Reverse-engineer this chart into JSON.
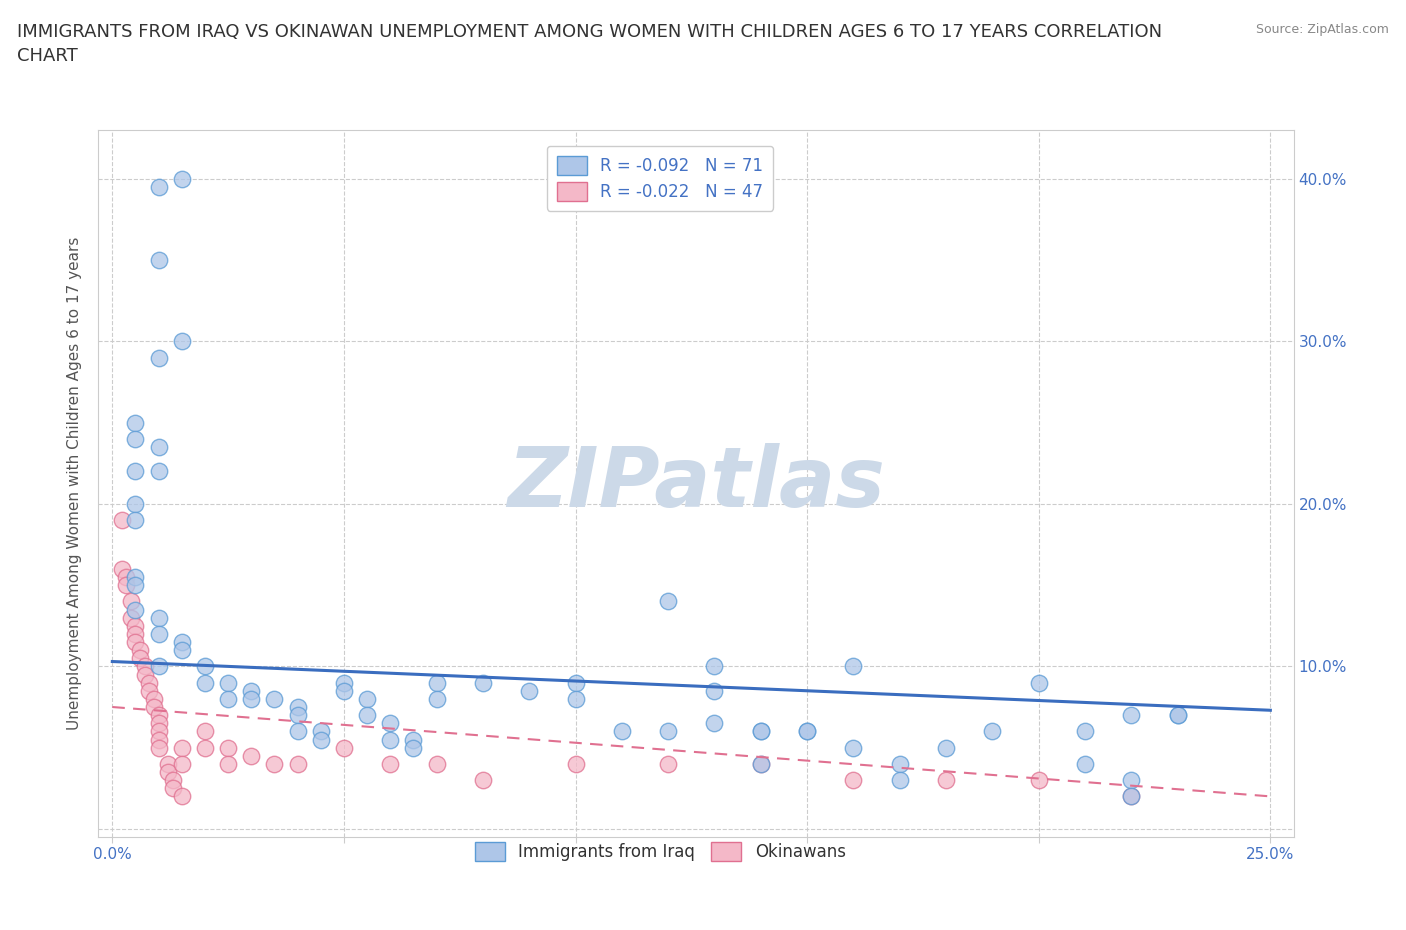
{
  "title": "IMMIGRANTS FROM IRAQ VS OKINAWAN UNEMPLOYMENT AMONG WOMEN WITH CHILDREN AGES 6 TO 17 YEARS CORRELATION\nCHART",
  "source": "Source: ZipAtlas.com",
  "ylabel": "Unemployment Among Women with Children Ages 6 to 17 years",
  "x_ticks": [
    0.0,
    0.05,
    0.1,
    0.15,
    0.2,
    0.25
  ],
  "y_ticks": [
    0.0,
    0.1,
    0.2,
    0.3,
    0.4
  ],
  "xlim": [
    -0.003,
    0.255
  ],
  "ylim": [
    -0.005,
    0.43
  ],
  "blue_scatter_color": "#aec6e8",
  "blue_edge_color": "#5b9bd5",
  "pink_scatter_color": "#f4b8c8",
  "pink_edge_color": "#e07090",
  "blue_line_color": "#3a6dbf",
  "pink_line_color": "#e07090",
  "legend_blue_R": "R = -0.092",
  "legend_blue_N": "N = 71",
  "legend_pink_R": "R = -0.022",
  "legend_pink_N": "N = 47",
  "watermark": "ZIPatlas",
  "blue_scatter_x": [
    0.015,
    0.01,
    0.01,
    0.015,
    0.01,
    0.005,
    0.005,
    0.01,
    0.01,
    0.005,
    0.005,
    0.005,
    0.005,
    0.005,
    0.005,
    0.01,
    0.01,
    0.015,
    0.015,
    0.01,
    0.02,
    0.02,
    0.025,
    0.025,
    0.03,
    0.03,
    0.035,
    0.04,
    0.04,
    0.04,
    0.045,
    0.045,
    0.05,
    0.05,
    0.055,
    0.055,
    0.06,
    0.06,
    0.065,
    0.065,
    0.07,
    0.07,
    0.08,
    0.09,
    0.1,
    0.1,
    0.11,
    0.12,
    0.13,
    0.13,
    0.14,
    0.14,
    0.15,
    0.16,
    0.17,
    0.18,
    0.19,
    0.2,
    0.21,
    0.21,
    0.22,
    0.22,
    0.23,
    0.12,
    0.13,
    0.14,
    0.15,
    0.16,
    0.17,
    0.22,
    0.23
  ],
  "blue_scatter_y": [
    0.4,
    0.395,
    0.35,
    0.3,
    0.29,
    0.25,
    0.24,
    0.235,
    0.22,
    0.22,
    0.2,
    0.19,
    0.155,
    0.15,
    0.135,
    0.13,
    0.12,
    0.115,
    0.11,
    0.1,
    0.1,
    0.09,
    0.09,
    0.08,
    0.085,
    0.08,
    0.08,
    0.075,
    0.07,
    0.06,
    0.06,
    0.055,
    0.09,
    0.085,
    0.08,
    0.07,
    0.065,
    0.055,
    0.055,
    0.05,
    0.09,
    0.08,
    0.09,
    0.085,
    0.09,
    0.08,
    0.06,
    0.06,
    0.085,
    0.065,
    0.06,
    0.04,
    0.06,
    0.1,
    0.04,
    0.05,
    0.06,
    0.09,
    0.04,
    0.06,
    0.07,
    0.03,
    0.07,
    0.14,
    0.1,
    0.06,
    0.06,
    0.05,
    0.03,
    0.02,
    0.07
  ],
  "pink_scatter_x": [
    0.002,
    0.002,
    0.003,
    0.003,
    0.004,
    0.004,
    0.005,
    0.005,
    0.005,
    0.006,
    0.006,
    0.007,
    0.007,
    0.008,
    0.008,
    0.009,
    0.009,
    0.01,
    0.01,
    0.01,
    0.01,
    0.01,
    0.012,
    0.012,
    0.013,
    0.013,
    0.015,
    0.015,
    0.015,
    0.02,
    0.02,
    0.025,
    0.025,
    0.03,
    0.035,
    0.04,
    0.05,
    0.06,
    0.07,
    0.08,
    0.1,
    0.12,
    0.14,
    0.16,
    0.18,
    0.2,
    0.22
  ],
  "pink_scatter_y": [
    0.19,
    0.16,
    0.155,
    0.15,
    0.14,
    0.13,
    0.125,
    0.12,
    0.115,
    0.11,
    0.105,
    0.1,
    0.095,
    0.09,
    0.085,
    0.08,
    0.075,
    0.07,
    0.065,
    0.06,
    0.055,
    0.05,
    0.04,
    0.035,
    0.03,
    0.025,
    0.05,
    0.04,
    0.02,
    0.06,
    0.05,
    0.05,
    0.04,
    0.045,
    0.04,
    0.04,
    0.05,
    0.04,
    0.04,
    0.03,
    0.04,
    0.04,
    0.04,
    0.03,
    0.03,
    0.03,
    0.02
  ],
  "blue_trend_x": [
    0.0,
    0.25
  ],
  "blue_trend_y": [
    0.103,
    0.073
  ],
  "pink_trend_x": [
    0.0,
    0.25
  ],
  "pink_trend_y": [
    0.075,
    0.02
  ],
  "grid_color": "#cccccc",
  "grid_style": "--",
  "bg_color": "#ffffff",
  "title_fontsize": 13,
  "axis_label_fontsize": 11,
  "tick_fontsize": 11,
  "legend_fontsize": 12,
  "watermark_color": "#ccd9e8",
  "watermark_fontsize": 60,
  "tick_color": "#4472c4"
}
